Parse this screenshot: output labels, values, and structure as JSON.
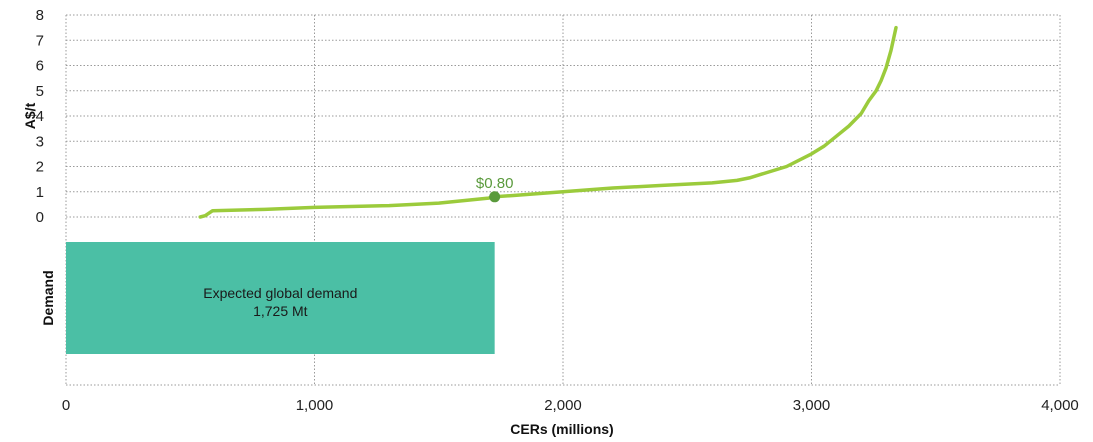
{
  "chart_data": {
    "type": "line",
    "title": "",
    "xlabel": "CERs (millions)",
    "ylabel": "A$/t",
    "xlim": [
      0,
      4000
    ],
    "ylim": [
      0,
      8
    ],
    "x_ticks": [
      0,
      1000,
      2000,
      3000,
      4000
    ],
    "x_tick_labels": [
      "0",
      "1,000",
      "2,000",
      "3,000",
      "4,000"
    ],
    "y_ticks": [
      0,
      1,
      2,
      3,
      4,
      5,
      6,
      7,
      8
    ],
    "y_tick_labels": [
      "0",
      "1",
      "2",
      "3",
      "4",
      "5",
      "6",
      "7",
      "8"
    ],
    "grid": true,
    "legend": "none",
    "series": [
      {
        "color": "#9bcb3c",
        "x": [
          540,
          560,
          575,
          590,
          800,
          1000,
          1300,
          1500,
          1600,
          1700,
          1725,
          1800,
          2000,
          2200,
          2400,
          2600,
          2700,
          2750,
          2800,
          2900,
          3000,
          3050,
          3100,
          3150,
          3200,
          3230,
          3260,
          3280,
          3300,
          3320,
          3340
        ],
        "y": [
          0.0,
          0.05,
          0.15,
          0.25,
          0.3,
          0.38,
          0.45,
          0.55,
          0.65,
          0.75,
          0.8,
          0.85,
          1.0,
          1.15,
          1.25,
          1.35,
          1.45,
          1.55,
          1.7,
          2.0,
          2.5,
          2.8,
          3.2,
          3.6,
          4.1,
          4.6,
          5.0,
          5.4,
          5.9,
          6.6,
          7.5
        ]
      }
    ],
    "annotations": [
      {
        "x": 1725,
        "y": 0.8,
        "text": "$0.80",
        "color": "#5a9a3c"
      }
    ],
    "demand_panel": {
      "label": "Demand",
      "bar_label_line1": "Expected global demand",
      "bar_label_line2": "1,725 Mt",
      "bar_start": 0,
      "bar_end": 1725,
      "bar_color": "#4bbfa5"
    }
  }
}
